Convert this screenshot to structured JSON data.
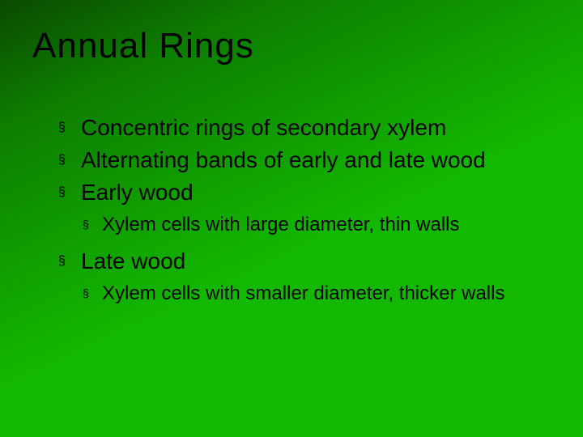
{
  "slide": {
    "title": "Annual Rings",
    "background_gradient": [
      "#0a4a00",
      "#0d7d00",
      "#13b800"
    ],
    "title_font": "Impact",
    "title_fontsize": 44,
    "body_font": "Verdana",
    "body_fontsize_lvl1": 28,
    "body_fontsize_lvl2": 24,
    "bullet_glyph": "§",
    "text_color": "#000000",
    "items": [
      {
        "level": 1,
        "text": "Concentric rings of secondary xylem"
      },
      {
        "level": 1,
        "text": "Alternating bands of early and late wood"
      },
      {
        "level": 1,
        "text": "Early wood"
      },
      {
        "level": 2,
        "text": "Xylem cells with large diameter, thin walls"
      },
      {
        "level": 1,
        "text": "Late wood"
      },
      {
        "level": 2,
        "text": "Xylem cells with smaller diameter, thicker walls"
      }
    ]
  }
}
